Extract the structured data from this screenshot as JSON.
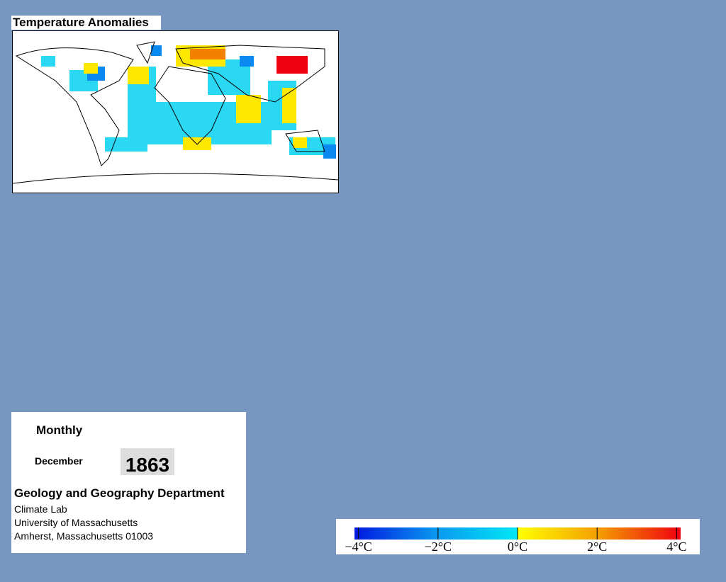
{
  "title": "Temperature Anomalies",
  "info": {
    "period": "Monthly",
    "month": "December",
    "year": "1863",
    "department": "Geology and Geography Department",
    "lines": [
      "Climate Lab",
      "University of Massachusetts",
      "Amherst, Massachusetts 01003"
    ]
  },
  "colorbar": {
    "range": [
      -4.1,
      4.1
    ],
    "colors": [
      {
        "value": -4.1,
        "color": "#0018e0"
      },
      {
        "value": -2,
        "color": "#0a9af0"
      },
      {
        "value": 0,
        "color": "#00e8f4"
      },
      {
        "value": 0.01,
        "color": "#ffff00"
      },
      {
        "value": 2,
        "color": "#f4a000"
      },
      {
        "value": 4.1,
        "color": "#f00010"
      }
    ],
    "ticks": [
      {
        "value": -4,
        "label": "−4°C"
      },
      {
        "value": -2,
        "label": "−2°C"
      },
      {
        "value": 0,
        "label": "0°C"
      },
      {
        "value": 2,
        "label": "2°C"
      },
      {
        "value": 4,
        "label": "4°C"
      }
    ]
  }
}
